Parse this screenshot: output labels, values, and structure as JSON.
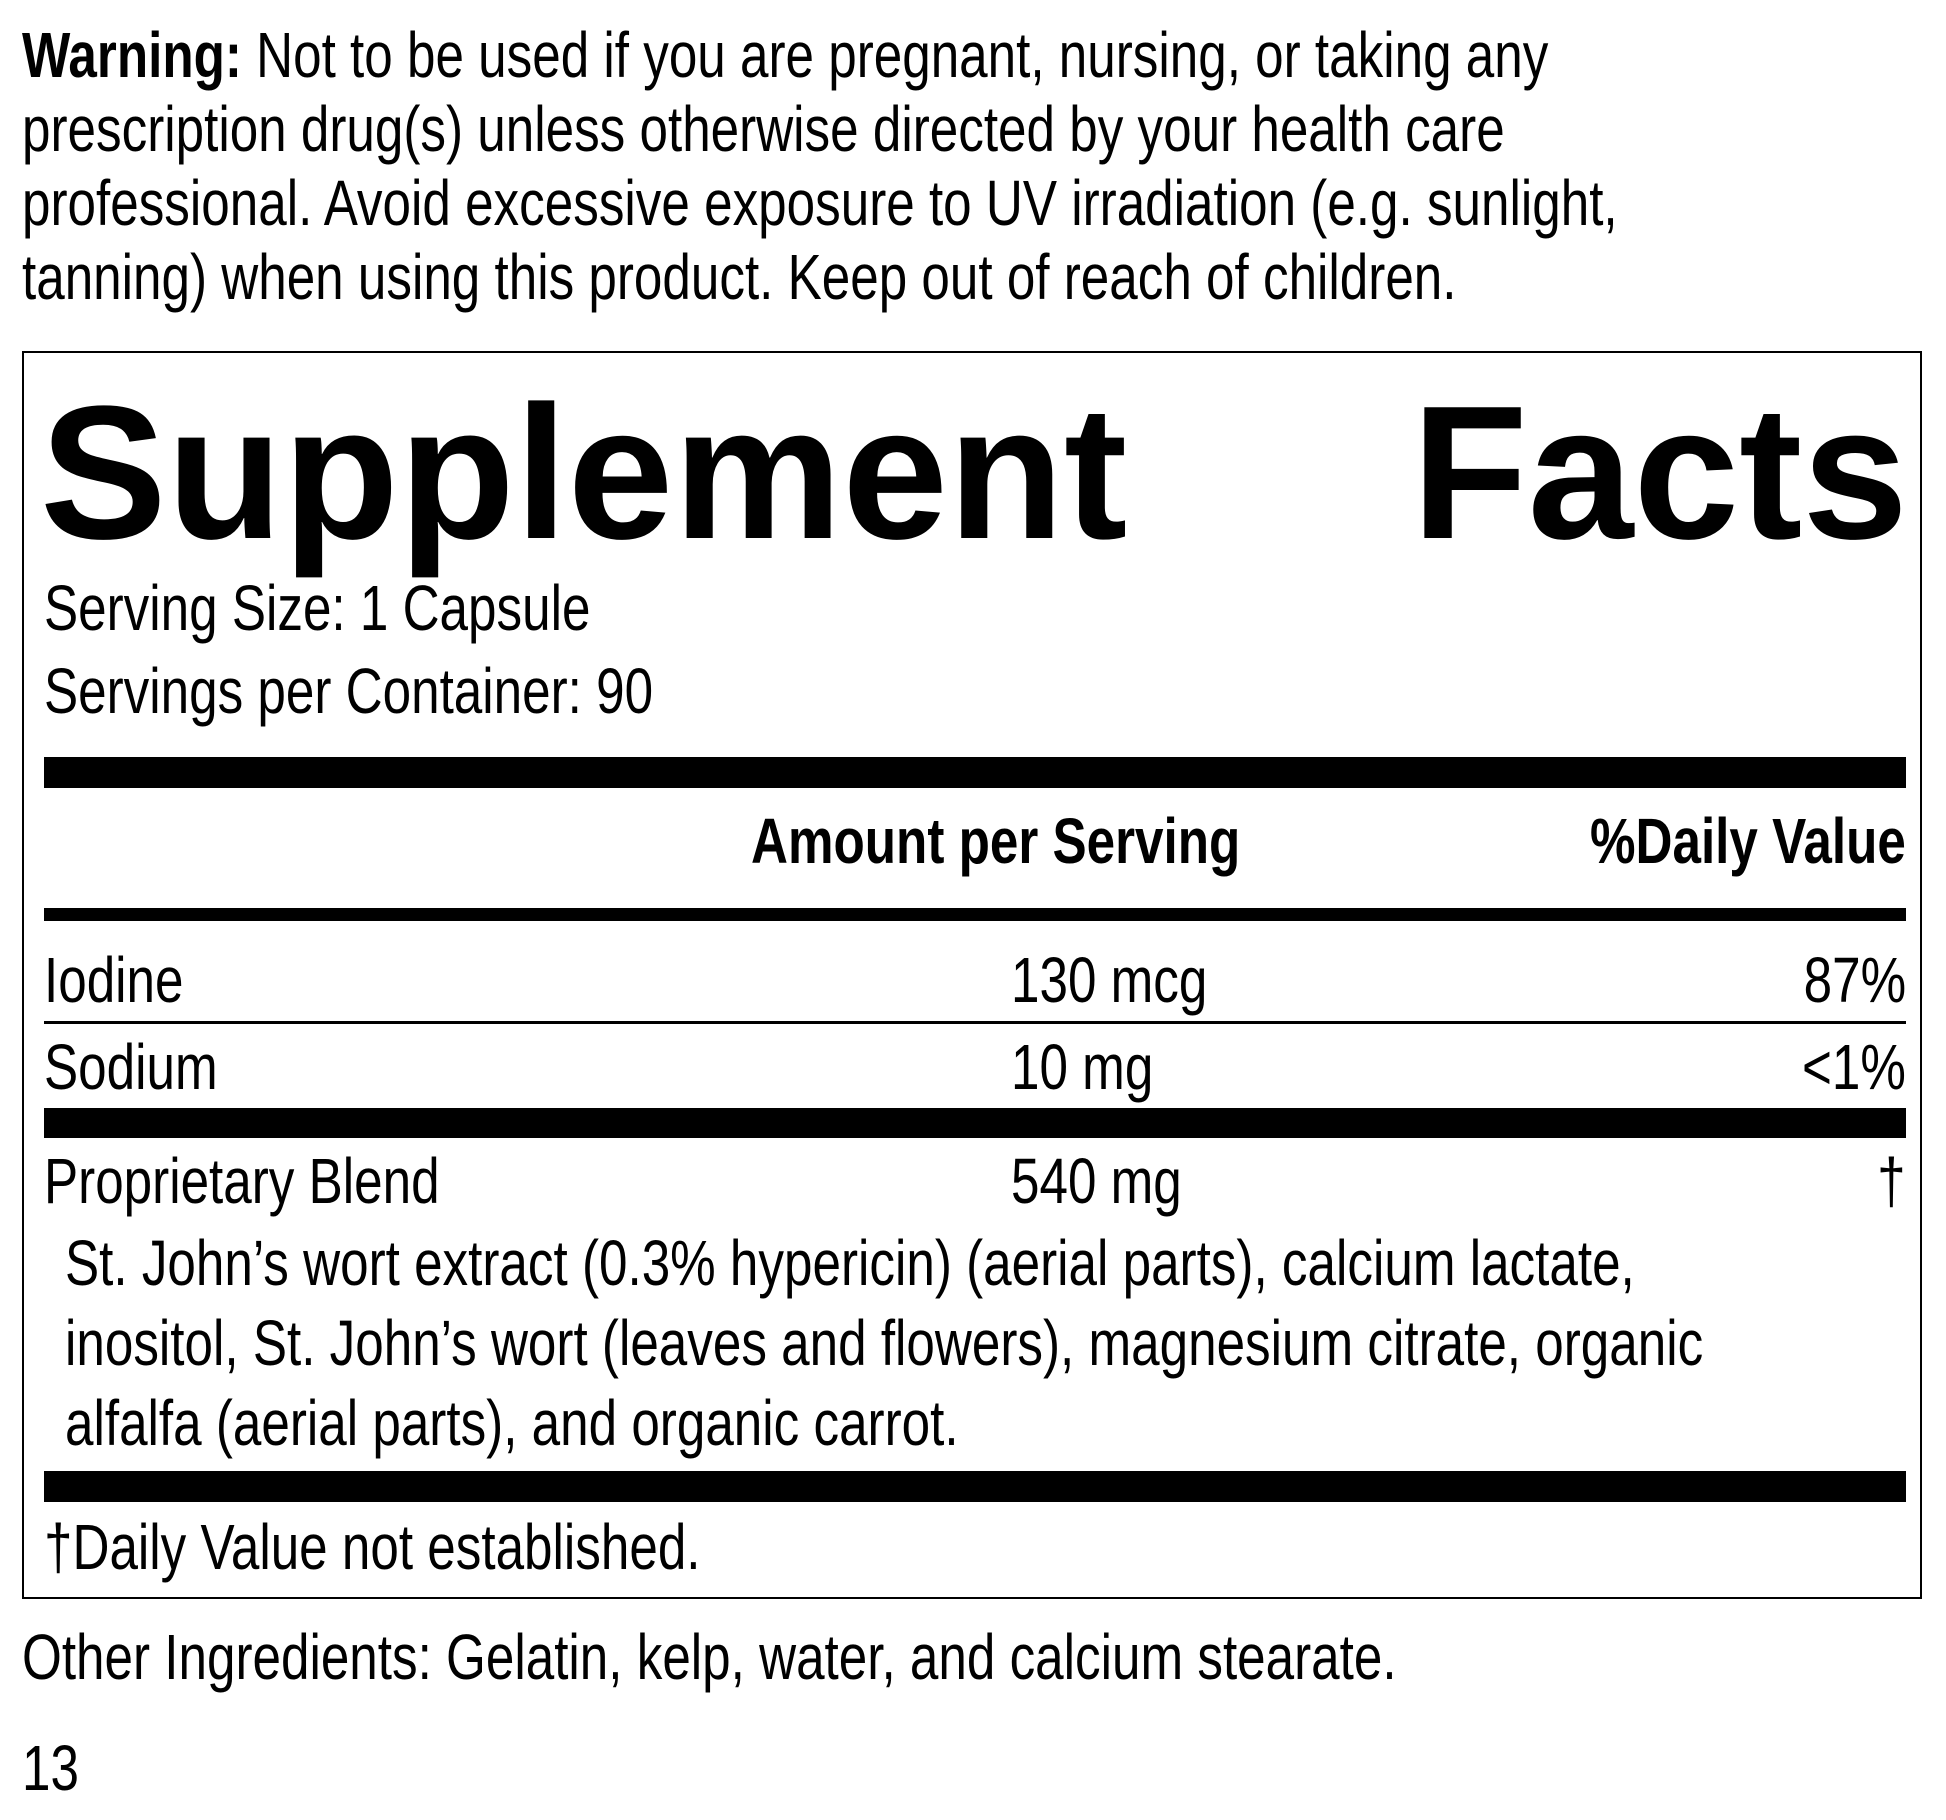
{
  "warning": {
    "label": "Warning:",
    "lines": [
      " Not to be used if you are pregnant, nursing, or taking any",
      "prescription drug(s) unless otherwise directed by your health care",
      "professional. Avoid excessive exposure to UV irradiation (e.g. sunlight,",
      "tanning) when using this product. Keep out of reach of children."
    ]
  },
  "facts": {
    "title_word1": "Supplement",
    "title_word2": "Facts",
    "serving_size": "Serving Size: 1 Capsule",
    "servings_per_container": "Servings per Container: 90",
    "header_amount": "Amount per Serving",
    "header_dv": "%Daily Value",
    "rows": [
      {
        "name": "Iodine",
        "amount": "130 mcg",
        "dv": "87%"
      },
      {
        "name": "Sodium",
        "amount": "10 mg",
        "dv": "<1%"
      },
      {
        "name": "Proprietary Blend",
        "amount": "540 mg",
        "dv": "†"
      }
    ],
    "blend_lines": [
      "St. John’s wort extract (0.3% hypericin) (aerial parts), calcium lactate,",
      "inositol, St. John’s wort (leaves and flowers), magnesium citrate, organic",
      "alfalfa (aerial parts), and organic carrot."
    ],
    "footnote": "†Daily Value not established."
  },
  "other_ingredients": "Other Ingredients: Gelatin, kelp, water, and calcium stearate.",
  "page_number": "13"
}
